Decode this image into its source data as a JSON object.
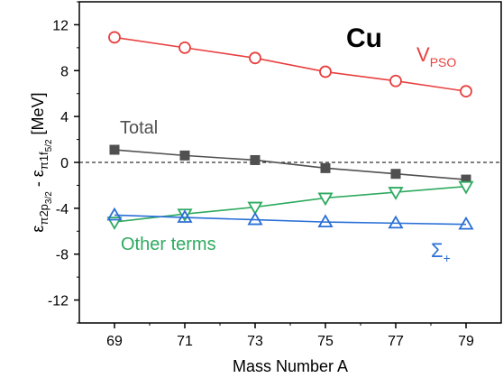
{
  "chart_data": {
    "type": "line",
    "xlabel": "Mass Number A",
    "ylabel": {
      "main": "ε",
      "sub1": "π2p",
      "sub1sub": "3/2",
      "minus": " - ε",
      "sub2": "π1f",
      "sub2sub": "5/2",
      "unit": " [MeV]"
    },
    "xlim": [
      68,
      80
    ],
    "ylim": [
      -14,
      14
    ],
    "xticks": [
      69,
      71,
      73,
      75,
      77,
      79
    ],
    "yticks": [
      -12,
      -8,
      -4,
      0,
      4,
      8,
      12
    ],
    "zero_line": "dashed",
    "grid": false,
    "series": [
      {
        "name": "V_PSO",
        "label_main": "V",
        "label_sub": "PSO",
        "color": "#e8403f",
        "marker": "circle-open",
        "x": [
          69,
          71,
          73,
          75,
          77,
          79
        ],
        "y": [
          10.9,
          10.0,
          9.1,
          7.9,
          7.1,
          6.2
        ]
      },
      {
        "name": "Total",
        "label_main": "Total",
        "color": "#505050",
        "marker": "square-filled",
        "x": [
          69,
          71,
          73,
          75,
          77,
          79
        ],
        "y": [
          1.1,
          0.6,
          0.2,
          -0.5,
          -1.0,
          -1.5
        ]
      },
      {
        "name": "Other terms",
        "label_main": "Other terms",
        "color": "#2faa60",
        "marker": "triangle-down-open",
        "x": [
          69,
          71,
          73,
          75,
          77,
          79
        ],
        "y": [
          -5.2,
          -4.5,
          -3.9,
          -3.1,
          -2.6,
          -2.1
        ]
      },
      {
        "name": "Σ+",
        "label_main": "Σ",
        "label_sub": "+",
        "color": "#2a6fd6",
        "marker": "triangle-up-open",
        "x": [
          69,
          71,
          73,
          75,
          77,
          79
        ],
        "y": [
          -4.6,
          -4.8,
          -5.0,
          -5.2,
          -5.3,
          -5.4
        ]
      }
    ],
    "annotation": "Cu"
  }
}
